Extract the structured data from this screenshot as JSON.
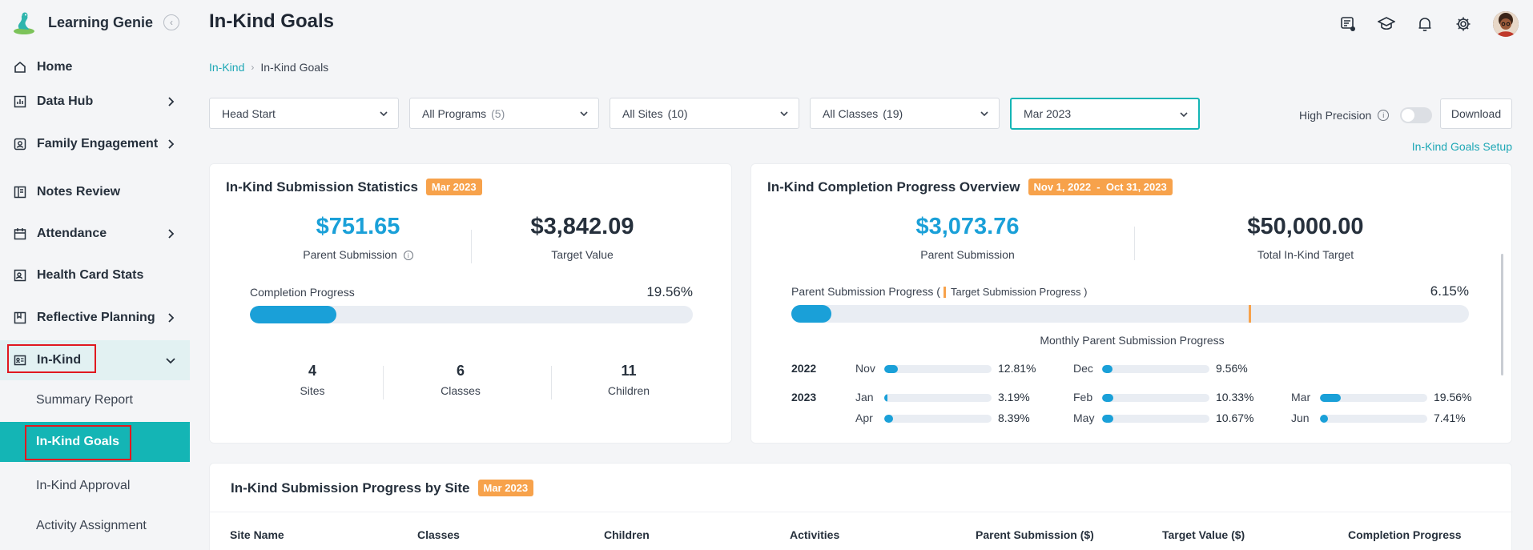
{
  "brand": {
    "name": "Learning Genie"
  },
  "sidebar": {
    "items": [
      {
        "label": "Home"
      },
      {
        "label": "Data Hub"
      },
      {
        "label": "Family Engagement"
      },
      {
        "label": "Notes Review"
      },
      {
        "label": "Attendance"
      },
      {
        "label": "Health Card Stats"
      },
      {
        "label": "Reflective Planning"
      },
      {
        "label": "In-Kind"
      }
    ],
    "sub_items": [
      {
        "label": "Summary Report"
      },
      {
        "label": "In-Kind Goals"
      },
      {
        "label": "In-Kind Approval"
      },
      {
        "label": "Activity Assignment"
      }
    ]
  },
  "header": {
    "title": "In-Kind Goals"
  },
  "breadcrumb": {
    "parent": "In-Kind",
    "current": "In-Kind Goals"
  },
  "filters": {
    "agency": "Head Start",
    "programs": "All Programs",
    "programs_count": "(5)",
    "sites": "All Sites",
    "sites_count": "(10)",
    "classes": "All Classes",
    "classes_count": "(19)",
    "month": "Mar 2023"
  },
  "toolbar": {
    "high_precision_label": "High Precision",
    "download_label": "Download",
    "setup_link": "In-Kind Goals Setup"
  },
  "stats_card": {
    "title": "In-Kind Submission Statistics",
    "tag": "Mar 2023",
    "parent_submission_value": "$751.65",
    "parent_submission_label": "Parent Submission",
    "target_value": "$3,842.09",
    "target_label": "Target Value",
    "completion_label": "Completion Progress",
    "completion_pct": "19.56%",
    "completion_fraction": 0.1956,
    "sites_value": "4",
    "sites_label": "Sites",
    "classes_value": "6",
    "classes_label": "Classes",
    "children_value": "11",
    "children_label": "Children"
  },
  "overview_card": {
    "title": "In-Kind Completion Progress Overview",
    "tag": "Nov 1, 2022  -  Oct 31, 2023",
    "parent_submission_value": "$3,073.76",
    "parent_submission_label": "Parent Submission",
    "total_target_value": "$50,000.00",
    "total_target_label": "Total In-Kind Target",
    "progress_label": "Parent Submission Progress (",
    "target_progress_label": "Target Submission Progress )",
    "progress_pct": "6.15%",
    "progress_fraction": 0.0615,
    "target_marker_fraction": 0.675,
    "monthly_title": "Monthly Parent Submission Progress",
    "year_2022": "2022",
    "year_2023": "2023",
    "months": [
      {
        "m": "Nov",
        "pct": "12.81%",
        "v": 0.1281
      },
      {
        "m": "Dec",
        "pct": "9.56%",
        "v": 0.0956
      },
      {
        "m": "Jan",
        "pct": "3.19%",
        "v": 0.0319
      },
      {
        "m": "Feb",
        "pct": "10.33%",
        "v": 0.1033
      },
      {
        "m": "Mar",
        "pct": "19.56%",
        "v": 0.1956
      },
      {
        "m": "Apr",
        "pct": "8.39%",
        "v": 0.0839
      },
      {
        "m": "May",
        "pct": "10.67%",
        "v": 0.1067
      },
      {
        "m": "Jun",
        "pct": "7.41%",
        "v": 0.0741
      }
    ]
  },
  "site_card": {
    "title": "In-Kind Submission Progress by Site",
    "tag": "Mar 2023",
    "columns": [
      "Site Name",
      "Classes",
      "Children",
      "Activities",
      "Parent Submission ($)",
      "Target Value ($)",
      "Completion Progress"
    ]
  }
}
